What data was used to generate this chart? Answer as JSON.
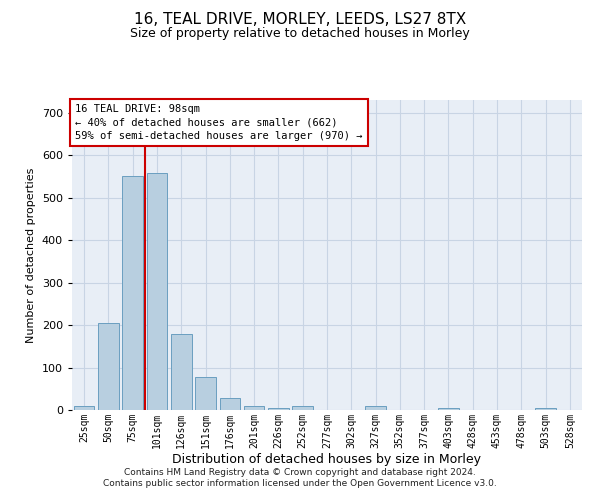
{
  "title1": "16, TEAL DRIVE, MORLEY, LEEDS, LS27 8TX",
  "title2": "Size of property relative to detached houses in Morley",
  "xlabel": "Distribution of detached houses by size in Morley",
  "ylabel": "Number of detached properties",
  "bins": [
    "25sqm",
    "50sqm",
    "75sqm",
    "101sqm",
    "126sqm",
    "151sqm",
    "176sqm",
    "201sqm",
    "226sqm",
    "252sqm",
    "277sqm",
    "302sqm",
    "327sqm",
    "352sqm",
    "377sqm",
    "403sqm",
    "428sqm",
    "453sqm",
    "478sqm",
    "503sqm",
    "528sqm"
  ],
  "values": [
    10,
    204,
    552,
    558,
    178,
    78,
    28,
    10,
    5,
    10,
    0,
    0,
    10,
    0,
    0,
    5,
    0,
    0,
    0,
    5,
    0
  ],
  "bar_color": "#b8cfe0",
  "bar_edge_color": "#6a9fc0",
  "grid_color": "#c8d4e4",
  "background_color": "#e8eef6",
  "red_line_x": 2.5,
  "annotation_line1": "16 TEAL DRIVE: 98sqm",
  "annotation_line2": "← 40% of detached houses are smaller (662)",
  "annotation_line3": "59% of semi-detached houses are larger (970) →",
  "annotation_box_color": "#ffffff",
  "annotation_box_edge": "#cc0000",
  "footer": "Contains HM Land Registry data © Crown copyright and database right 2024.\nContains public sector information licensed under the Open Government Licence v3.0.",
  "ylim": [
    0,
    730
  ],
  "yticks": [
    0,
    100,
    200,
    300,
    400,
    500,
    600,
    700
  ]
}
